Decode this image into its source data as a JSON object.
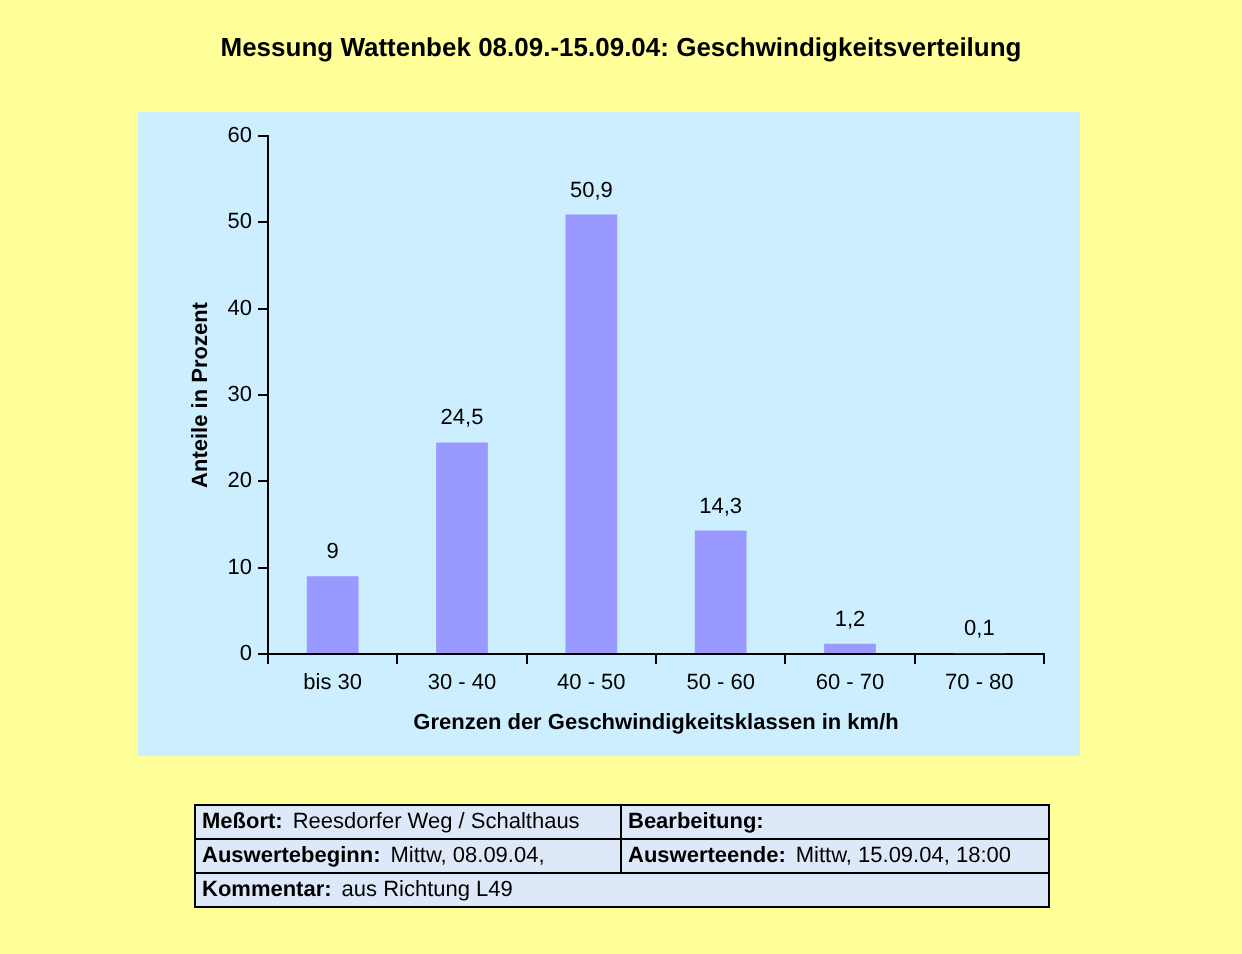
{
  "chart_data": {
    "type": "bar",
    "title": "Messung Wattenbek 08.09.-15.09.04: Geschwindigkeitsverteilung",
    "xlabel": "Grenzen der Geschwindigkeitsklassen in km/h",
    "ylabel": "Anteile in Prozent",
    "categories": [
      "bis 30",
      "30 - 40",
      "40 - 50",
      "50 - 60",
      "60 - 70",
      "70 - 80"
    ],
    "values": [
      9,
      24.5,
      50.9,
      14.3,
      1.2,
      0.1
    ],
    "color": "#9999ff",
    "value_labels": [
      "9",
      "24,5",
      "50,9",
      "14,3",
      "1,2",
      "0,1"
    ],
    "ylim": [
      0,
      60
    ],
    "yticks": [
      0,
      10,
      20,
      30,
      40,
      50,
      60
    ],
    "grid": false,
    "annotations": [
      "Meßort: Reesdorfer Weg / Schalthaus",
      "Bearbeitung:",
      "Auswertebeginn: Mittw, 08.09.04,",
      "Auswerteende: Mittw, 15.09.04, 18:00",
      "Kommentar: aus Richtung L49"
    ]
  }
}
